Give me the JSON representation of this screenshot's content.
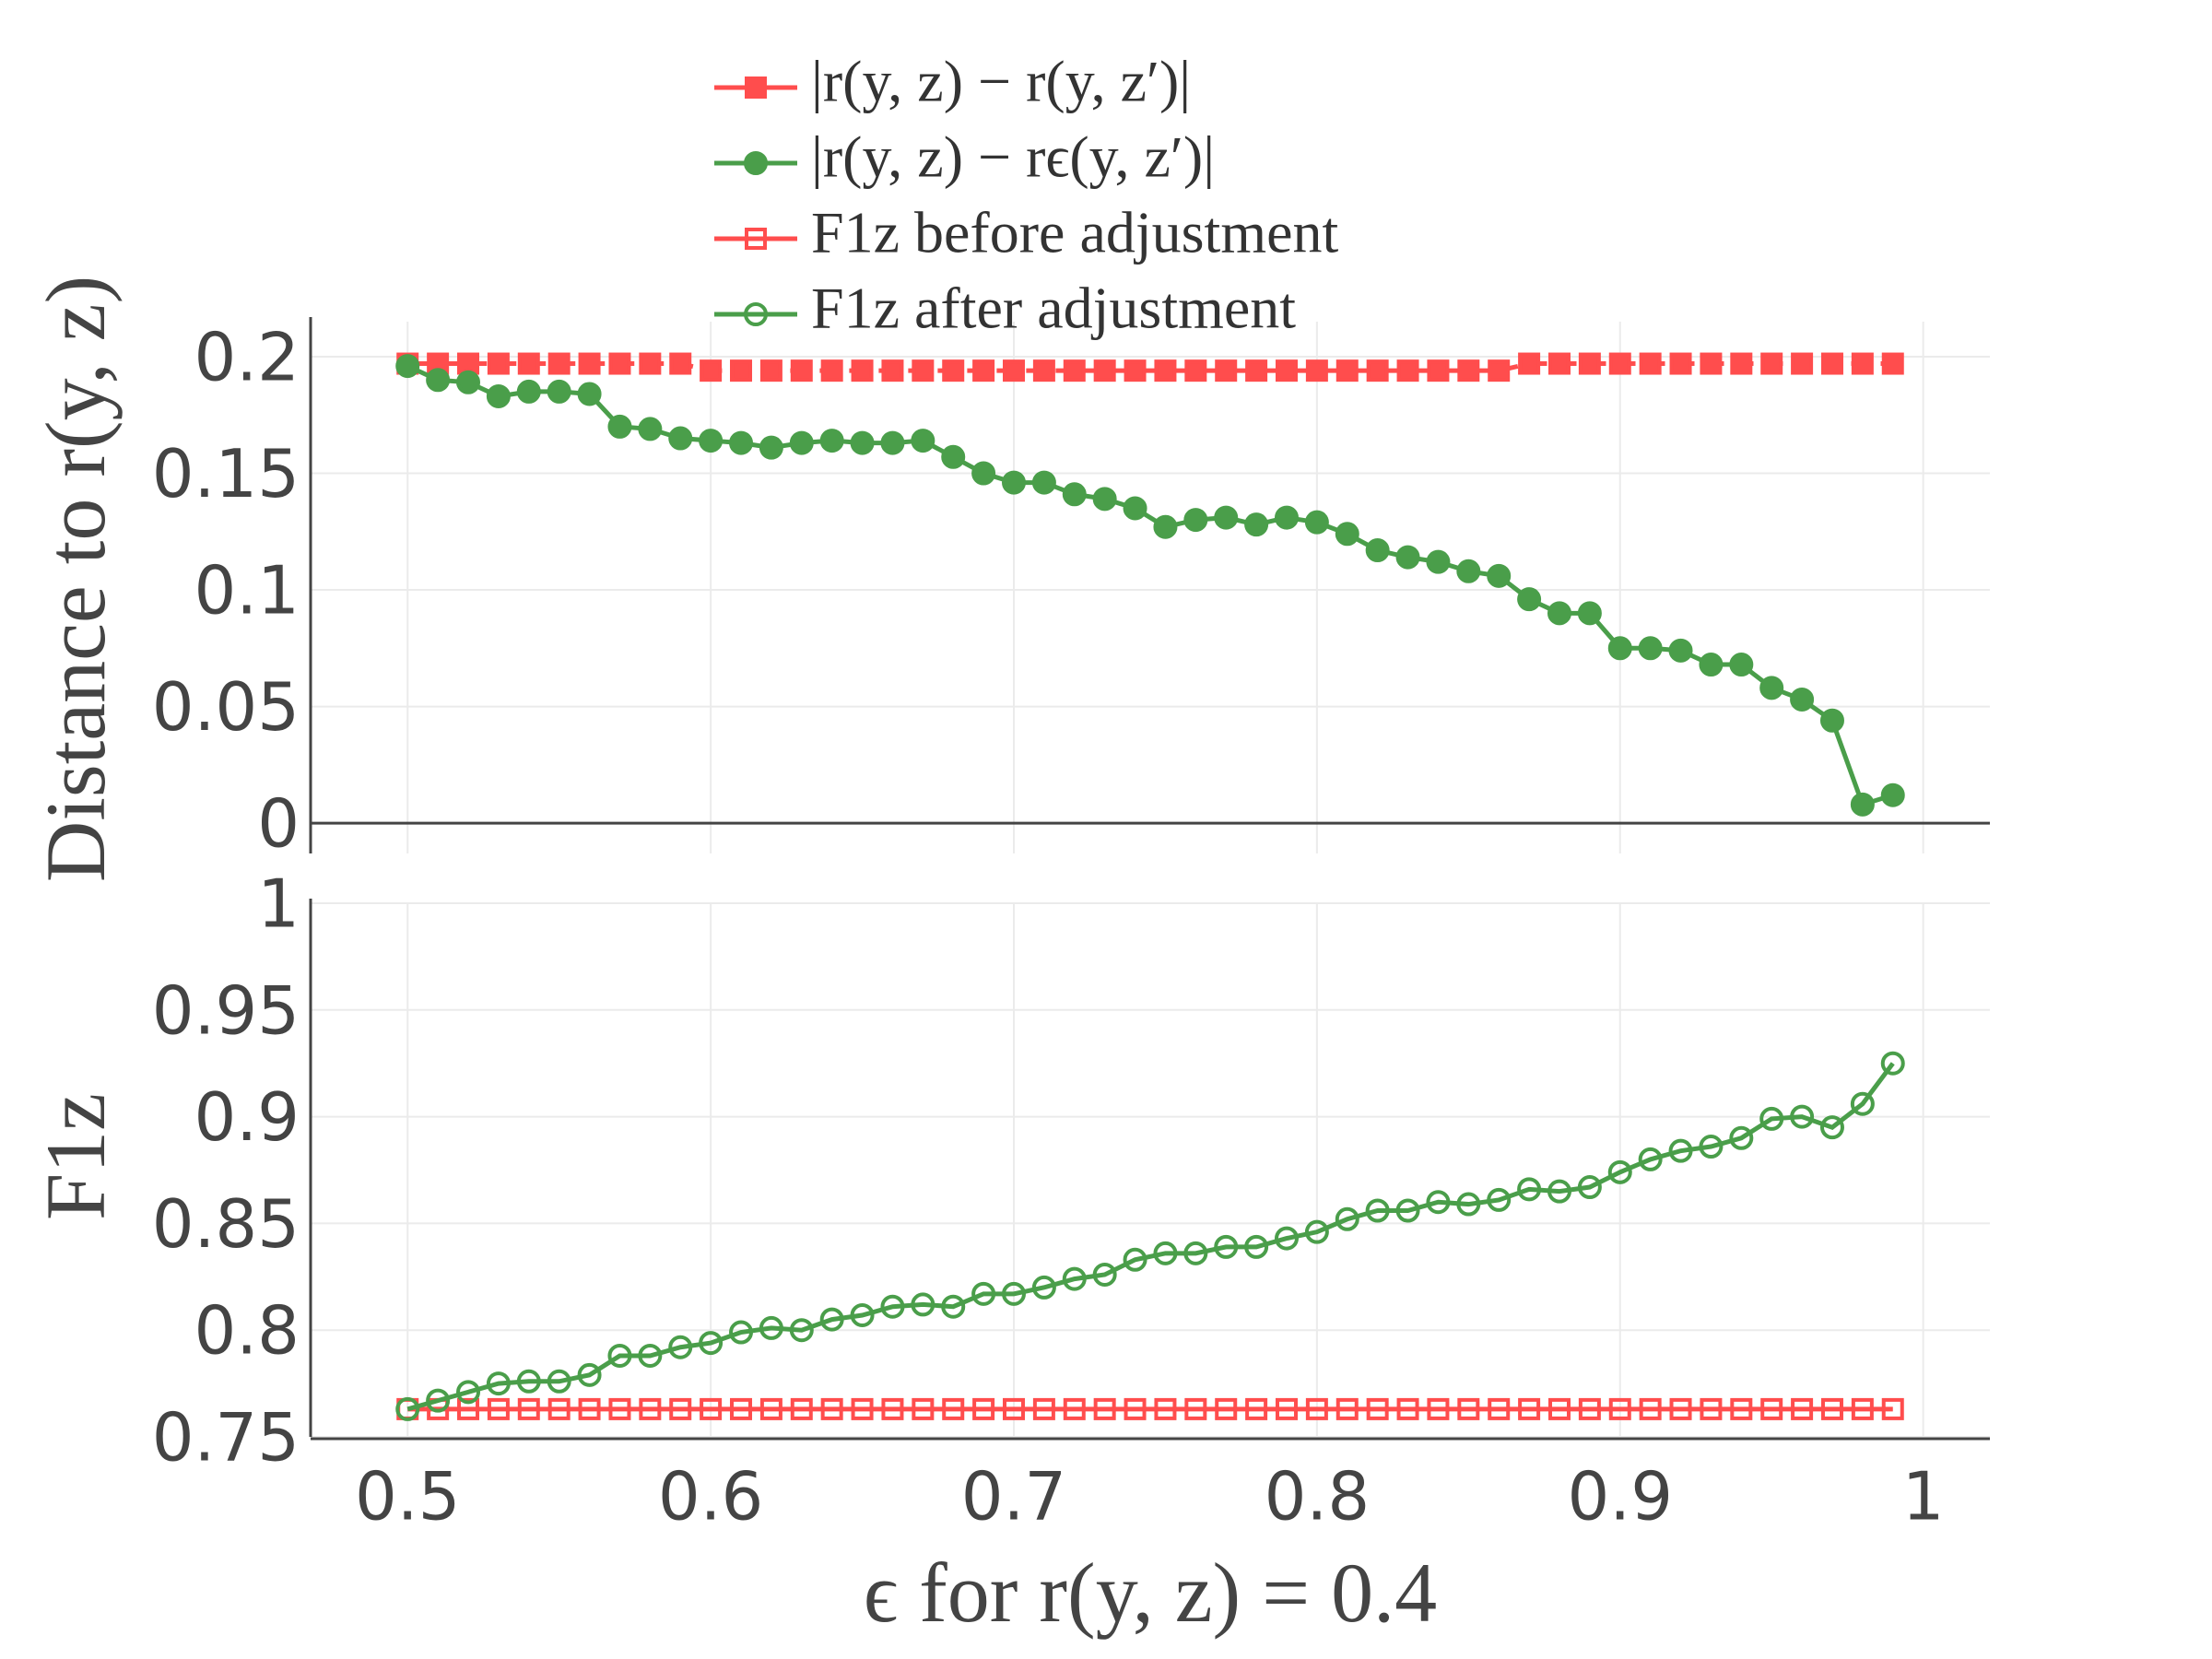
{
  "chart_data": [
    {
      "type": "line",
      "ylabel": "Distance to r(y, z)",
      "x": [
        0.5,
        0.51,
        0.52,
        0.53,
        0.54,
        0.55,
        0.56,
        0.57,
        0.58,
        0.59,
        0.6,
        0.61,
        0.62,
        0.63,
        0.64,
        0.65,
        0.66,
        0.67,
        0.68,
        0.69,
        0.7,
        0.71,
        0.72,
        0.73,
        0.74,
        0.75,
        0.76,
        0.77,
        0.78,
        0.79,
        0.8,
        0.81,
        0.82,
        0.83,
        0.84,
        0.85,
        0.86,
        0.87,
        0.88,
        0.89,
        0.9,
        0.91,
        0.92,
        0.93,
        0.94,
        0.95,
        0.96,
        0.97,
        0.98,
        0.99
      ],
      "series": [
        {
          "name": "|r(y, z) − r(y, z′)|",
          "color": "#ff4d4d",
          "marker": "square",
          "filled": true,
          "dash": true,
          "values": [
            0.197,
            0.197,
            0.197,
            0.197,
            0.197,
            0.197,
            0.197,
            0.197,
            0.197,
            0.197,
            0.194,
            0.194,
            0.194,
            0.194,
            0.194,
            0.194,
            0.194,
            0.194,
            0.194,
            0.194,
            0.194,
            0.194,
            0.194,
            0.194,
            0.194,
            0.194,
            0.194,
            0.194,
            0.194,
            0.194,
            0.194,
            0.194,
            0.194,
            0.194,
            0.194,
            0.194,
            0.194,
            0.197,
            0.197,
            0.197,
            0.197,
            0.197,
            0.197,
            0.197,
            0.197,
            0.197,
            0.197,
            0.197,
            0.197,
            0.197
          ]
        },
        {
          "name": "|r(y, z) − rϵ(y, z′)|",
          "color": "#4a9e4a",
          "marker": "circle",
          "filled": true,
          "dash": false,
          "values": [
            0.196,
            0.19,
            0.189,
            0.183,
            0.185,
            0.185,
            0.184,
            0.17,
            0.169,
            0.165,
            0.164,
            0.163,
            0.161,
            0.163,
            0.164,
            0.163,
            0.163,
            0.164,
            0.157,
            0.15,
            0.146,
            0.146,
            0.141,
            0.139,
            0.135,
            0.127,
            0.13,
            0.131,
            0.128,
            0.131,
            0.129,
            0.124,
            0.117,
            0.114,
            0.112,
            0.108,
            0.106,
            0.096,
            0.09,
            0.09,
            0.075,
            0.075,
            0.074,
            0.068,
            0.068,
            0.058,
            0.053,
            0.044,
            0.008,
            0.012
          ]
        }
      ],
      "xlim": [
        0.468,
        1.022
      ],
      "xticks": [
        0.5,
        0.6,
        0.7,
        0.8,
        0.9,
        1
      ],
      "ylim": [
        -0.013,
        0.215
      ],
      "yticks": [
        0,
        0.05,
        0.1,
        0.15,
        0.2
      ],
      "grid": true
    },
    {
      "type": "line",
      "ylabel": "F1z",
      "xlabel": "ϵ for r(y, z) = 0.4",
      "x": [
        0.5,
        0.51,
        0.52,
        0.53,
        0.54,
        0.55,
        0.56,
        0.57,
        0.58,
        0.59,
        0.6,
        0.61,
        0.62,
        0.63,
        0.64,
        0.65,
        0.66,
        0.67,
        0.68,
        0.69,
        0.7,
        0.71,
        0.72,
        0.73,
        0.74,
        0.75,
        0.76,
        0.77,
        0.78,
        0.79,
        0.8,
        0.81,
        0.82,
        0.83,
        0.84,
        0.85,
        0.86,
        0.87,
        0.88,
        0.89,
        0.9,
        0.91,
        0.92,
        0.93,
        0.94,
        0.95,
        0.96,
        0.97,
        0.98,
        0.99
      ],
      "series": [
        {
          "name": "F1z before adjustment",
          "color": "#ff4d4d",
          "marker": "square",
          "filled": false,
          "dash": false,
          "values": [
            0.763,
            0.763,
            0.763,
            0.763,
            0.763,
            0.763,
            0.763,
            0.763,
            0.763,
            0.763,
            0.763,
            0.763,
            0.763,
            0.763,
            0.763,
            0.763,
            0.763,
            0.763,
            0.763,
            0.763,
            0.763,
            0.763,
            0.763,
            0.763,
            0.763,
            0.763,
            0.763,
            0.763,
            0.763,
            0.763,
            0.763,
            0.763,
            0.763,
            0.763,
            0.763,
            0.763,
            0.763,
            0.763,
            0.763,
            0.763,
            0.763,
            0.763,
            0.763,
            0.763,
            0.763,
            0.763,
            0.763,
            0.763,
            0.763,
            0.763
          ]
        },
        {
          "name": "F1z after adjustment",
          "color": "#4a9e4a",
          "marker": "circle",
          "filled": false,
          "dash": false,
          "values": [
            0.763,
            0.767,
            0.771,
            0.775,
            0.776,
            0.776,
            0.779,
            0.788,
            0.788,
            0.792,
            0.794,
            0.799,
            0.801,
            0.8,
            0.805,
            0.807,
            0.811,
            0.812,
            0.811,
            0.817,
            0.817,
            0.82,
            0.824,
            0.826,
            0.833,
            0.836,
            0.836,
            0.839,
            0.839,
            0.843,
            0.846,
            0.852,
            0.856,
            0.856,
            0.86,
            0.859,
            0.861,
            0.866,
            0.865,
            0.867,
            0.874,
            0.88,
            0.884,
            0.886,
            0.89,
            0.899,
            0.9,
            0.895,
            0.906,
            0.925
          ]
        }
      ],
      "xlim": [
        0.468,
        1.022
      ],
      "xticks": [
        0.5,
        0.6,
        0.7,
        0.8,
        0.9,
        1
      ],
      "ylim": [
        0.75,
        1
      ],
      "yticks": [
        0.75,
        0.8,
        0.85,
        0.9,
        0.95,
        1
      ],
      "grid": true
    }
  ]
}
